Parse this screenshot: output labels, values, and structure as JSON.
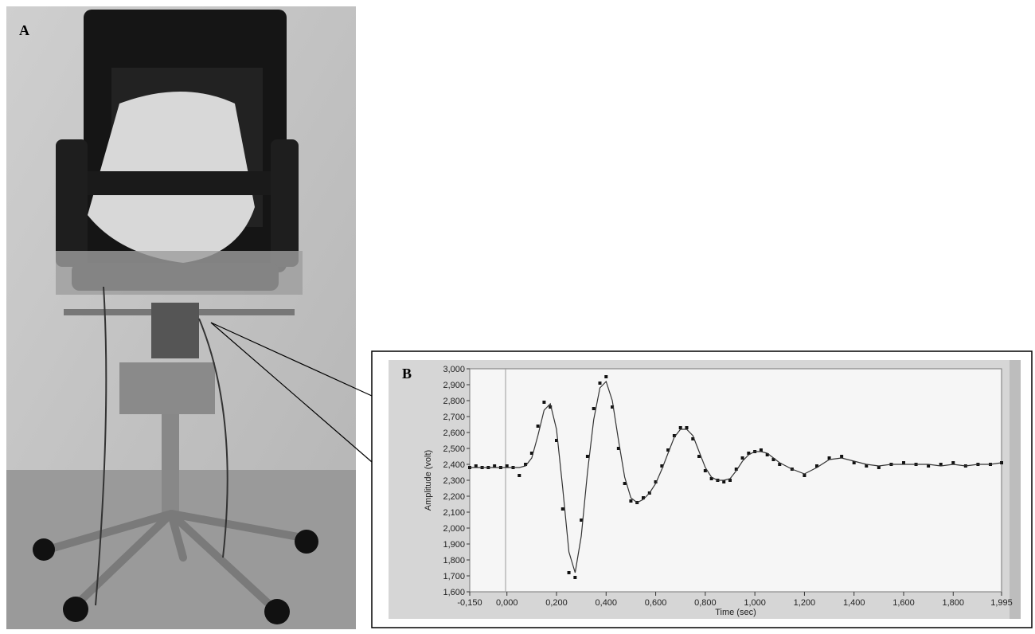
{
  "panel_labels": [
    "A",
    "B"
  ],
  "chart_data": {
    "type": "line",
    "xlabel": "Time (sec)",
    "ylabel": "Amplitude (volt)",
    "xlim": [
      -0.15,
      1.995
    ],
    "ylim": [
      1.6,
      3.0
    ],
    "xticks": [
      {
        "value": -0.15,
        "label": "-0,150"
      },
      {
        "value": 0,
        "label": "0,000"
      },
      {
        "value": 0.2,
        "label": "0,200"
      },
      {
        "value": 0.4,
        "label": "0,400"
      },
      {
        "value": 0.6,
        "label": "0,600"
      },
      {
        "value": 0.8,
        "label": "0,800"
      },
      {
        "value": 1.0,
        "label": "1,000"
      },
      {
        "value": 1.2,
        "label": "1,200"
      },
      {
        "value": 1.4,
        "label": "1,400"
      },
      {
        "value": 1.6,
        "label": "1,600"
      },
      {
        "value": 1.8,
        "label": "1,800"
      },
      {
        "value": 1.995,
        "label": "1,995"
      }
    ],
    "yticks": [
      {
        "value": 1.6,
        "label": "1,600"
      },
      {
        "value": 1.7,
        "label": "1,700"
      },
      {
        "value": 1.8,
        "label": "1,800"
      },
      {
        "value": 1.9,
        "label": "1,900"
      },
      {
        "value": 2.0,
        "label": "2,000"
      },
      {
        "value": 2.1,
        "label": "2,100"
      },
      {
        "value": 2.2,
        "label": "2,200"
      },
      {
        "value": 2.3,
        "label": "2,300"
      },
      {
        "value": 2.4,
        "label": "2,400"
      },
      {
        "value": 2.5,
        "label": "2,500"
      },
      {
        "value": 2.6,
        "label": "2,600"
      },
      {
        "value": 2.7,
        "label": "2,700"
      },
      {
        "value": 2.8,
        "label": "2,800"
      },
      {
        "value": 2.9,
        "label": "2,900"
      },
      {
        "value": 3.0,
        "label": "3,000"
      }
    ],
    "x": [
      -0.15,
      -0.125,
      -0.1,
      -0.075,
      -0.05,
      -0.025,
      0,
      0.025,
      0.05,
      0.075,
      0.1,
      0.125,
      0.15,
      0.175,
      0.2,
      0.225,
      0.25,
      0.275,
      0.3,
      0.325,
      0.35,
      0.375,
      0.4,
      0.425,
      0.45,
      0.475,
      0.5,
      0.525,
      0.55,
      0.575,
      0.6,
      0.625,
      0.65,
      0.675,
      0.7,
      0.725,
      0.75,
      0.775,
      0.8,
      0.825,
      0.85,
      0.875,
      0.9,
      0.925,
      0.95,
      0.975,
      1.0,
      1.025,
      1.05,
      1.075,
      1.1,
      1.15,
      1.2,
      1.25,
      1.3,
      1.35,
      1.4,
      1.45,
      1.5,
      1.55,
      1.6,
      1.65,
      1.7,
      1.75,
      1.8,
      1.85,
      1.9,
      1.95,
      1.995
    ],
    "series": [
      {
        "style": "markers",
        "color": "#111111",
        "values": [
          2.38,
          2.39,
          2.38,
          2.38,
          2.39,
          2.38,
          2.39,
          2.38,
          2.33,
          2.4,
          2.47,
          2.64,
          2.79,
          2.76,
          2.55,
          2.12,
          1.72,
          1.69,
          2.05,
          2.45,
          2.75,
          2.91,
          2.95,
          2.76,
          2.5,
          2.28,
          2.17,
          2.16,
          2.19,
          2.22,
          2.29,
          2.39,
          2.49,
          2.58,
          2.63,
          2.63,
          2.56,
          2.45,
          2.36,
          2.31,
          2.3,
          2.29,
          2.3,
          2.37,
          2.44,
          2.47,
          2.48,
          2.49,
          2.46,
          2.43,
          2.4,
          2.37,
          2.33,
          2.39,
          2.44,
          2.45,
          2.41,
          2.39,
          2.38,
          2.4,
          2.41,
          2.4,
          2.39,
          2.4,
          2.41,
          2.39,
          2.4,
          2.4,
          2.41
        ]
      },
      {
        "style": "line",
        "color": "#333333",
        "values": [
          2.38,
          2.38,
          2.38,
          2.38,
          2.38,
          2.38,
          2.38,
          2.38,
          2.38,
          2.39,
          2.44,
          2.58,
          2.74,
          2.78,
          2.62,
          2.25,
          1.85,
          1.72,
          1.95,
          2.35,
          2.68,
          2.88,
          2.92,
          2.8,
          2.55,
          2.32,
          2.19,
          2.16,
          2.18,
          2.22,
          2.28,
          2.37,
          2.47,
          2.57,
          2.62,
          2.62,
          2.58,
          2.48,
          2.38,
          2.32,
          2.3,
          2.3,
          2.31,
          2.36,
          2.42,
          2.46,
          2.48,
          2.48,
          2.47,
          2.44,
          2.41,
          2.37,
          2.34,
          2.38,
          2.43,
          2.44,
          2.42,
          2.4,
          2.39,
          2.4,
          2.4,
          2.4,
          2.4,
          2.39,
          2.4,
          2.39,
          2.4,
          2.4,
          2.41
        ]
      }
    ]
  }
}
